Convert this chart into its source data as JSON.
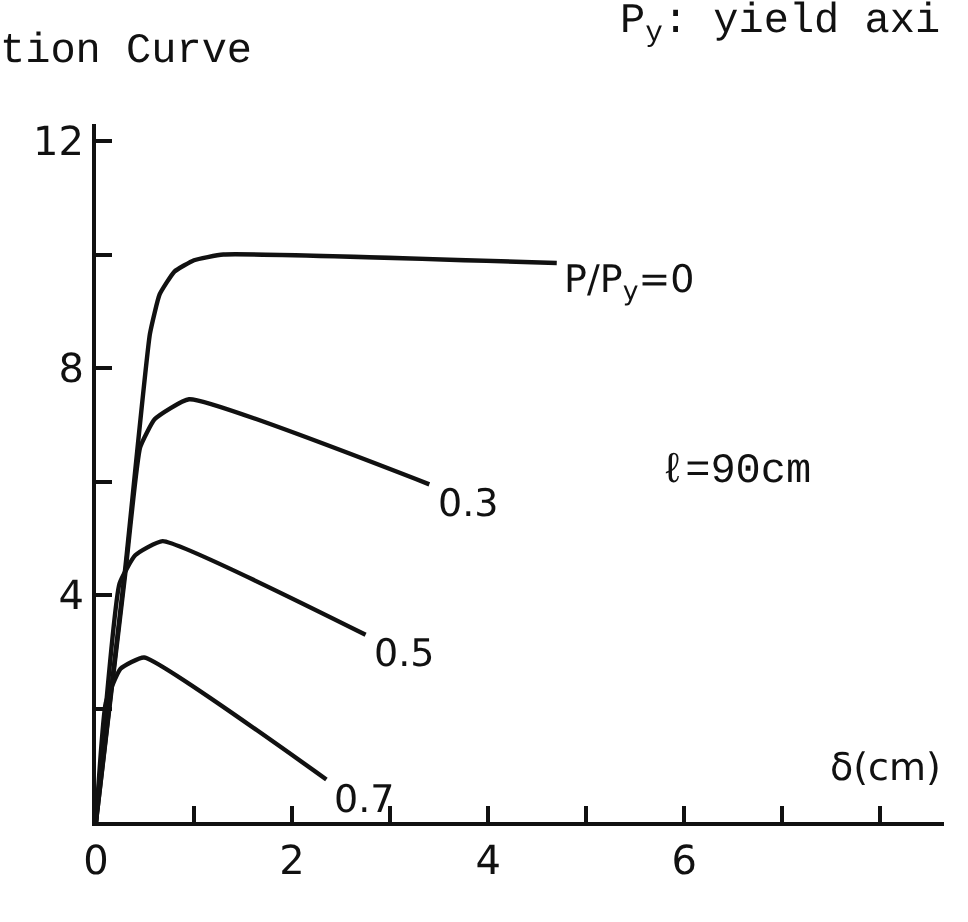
{
  "chart_data": {
    "type": "line",
    "title": "tion Curve",
    "subtitle": "P$_{y}$: yield axi",
    "xlabel": "δ(cm)",
    "xlim": [
      0,
      8.65
    ],
    "ylim": [
      0,
      12.3
    ],
    "xticks": [
      0,
      {
        "value": 1,
        "label": null
      },
      2,
      {
        "value": 3,
        "label": null
      },
      4,
      {
        "value": 5,
        "label": null
      },
      6,
      {
        "value": 7,
        "label": null
      },
      {
        "value": 8,
        "label": null
      }
    ],
    "yticks": [
      {
        "value": 0,
        "label": null
      },
      {
        "value": 2,
        "label": null
      },
      4,
      {
        "value": 6,
        "label": null
      },
      8,
      {
        "value": 10,
        "label": null
      },
      12
    ],
    "legend": false,
    "marker": "none",
    "line_style": "solid",
    "annotations": [
      "ℓ=90cm"
    ],
    "series": [
      {
        "name": "P/P$_{y}$=0",
        "color": "#111111",
        "x": [
          0,
          0.3,
          0.55,
          0.65,
          0.8,
          1.0,
          1.3,
          4.7
        ],
        "values": [
          0,
          4.5,
          8.6,
          9.3,
          9.7,
          9.9,
          10.0,
          9.85
        ]
      },
      {
        "name": "0.3",
        "color": "#111111",
        "x": [
          0,
          0.3,
          0.45,
          0.6,
          0.95,
          3.4
        ],
        "values": [
          0,
          4.4,
          6.6,
          7.1,
          7.45,
          5.95
        ]
      },
      {
        "name": "0.5",
        "color": "#111111",
        "x": [
          0,
          0.24,
          0.4,
          0.68,
          2.75
        ],
        "values": [
          0,
          4.2,
          4.7,
          4.95,
          3.3
        ]
      },
      {
        "name": "0.7",
        "color": "#111111",
        "x": [
          0,
          0.1,
          0.25,
          0.49,
          2.35
        ],
        "values": [
          0,
          2.1,
          2.7,
          2.9,
          0.75
        ]
      }
    ]
  }
}
